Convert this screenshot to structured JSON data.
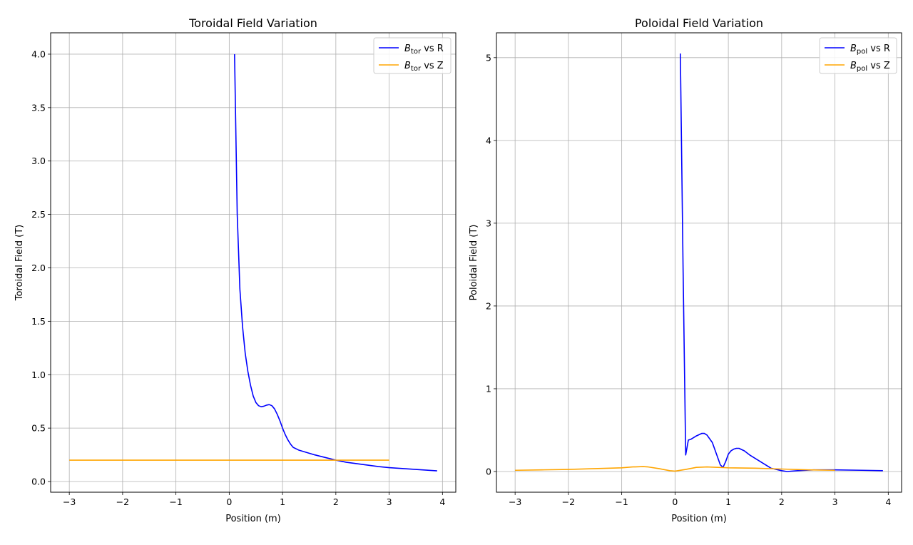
{
  "chart_data": [
    {
      "type": "line",
      "title": "Toroidal Field Variation",
      "xlabel": "Position (m)",
      "ylabel": "Toroidal Field (T)",
      "xlim": [
        -3.35,
        4.25
      ],
      "ylim": [
        -0.1,
        4.2
      ],
      "xticks": [
        -3,
        -2,
        -1,
        0,
        1,
        2,
        3,
        4
      ],
      "xtick_labels": [
        "−3",
        "−2",
        "−1",
        "0",
        "1",
        "2",
        "3",
        "4"
      ],
      "yticks": [
        0.0,
        0.5,
        1.0,
        1.5,
        2.0,
        2.5,
        3.0,
        3.5,
        4.0
      ],
      "ytick_labels": [
        "0.0",
        "0.5",
        "1.0",
        "1.5",
        "2.0",
        "2.5",
        "3.0",
        "3.5",
        "4.0"
      ],
      "grid": true,
      "legend_position": "top-right",
      "series": [
        {
          "name": "B_tor vs R",
          "legend_base": "B",
          "legend_sub": "tor",
          "legend_suffix": " vs R",
          "color": "#0000ff",
          "x": [
            0.1,
            0.15,
            0.2,
            0.25,
            0.3,
            0.35,
            0.4,
            0.45,
            0.5,
            0.55,
            0.6,
            0.65,
            0.7,
            0.75,
            0.8,
            0.85,
            0.9,
            0.95,
            1.0,
            1.05,
            1.1,
            1.15,
            1.2,
            1.3,
            1.4,
            1.5,
            1.6,
            1.8,
            2.0,
            2.2,
            2.5,
            2.8,
            3.0,
            3.3,
            3.6,
            3.9
          ],
          "y": [
            4.0,
            2.5,
            1.8,
            1.45,
            1.2,
            1.03,
            0.9,
            0.8,
            0.74,
            0.71,
            0.7,
            0.705,
            0.715,
            0.72,
            0.71,
            0.68,
            0.63,
            0.57,
            0.5,
            0.44,
            0.39,
            0.35,
            0.32,
            0.295,
            0.28,
            0.265,
            0.25,
            0.225,
            0.2,
            0.18,
            0.16,
            0.14,
            0.13,
            0.12,
            0.11,
            0.1
          ]
        },
        {
          "name": "B_tor vs Z",
          "legend_base": "B",
          "legend_sub": "tor",
          "legend_suffix": " vs Z",
          "color": "#ffa500",
          "x": [
            -3,
            3
          ],
          "y": [
            0.2,
            0.2
          ]
        }
      ]
    },
    {
      "type": "line",
      "title": "Poloidal Field Variation",
      "xlabel": "Position (m)",
      "ylabel": "Poloidal Field (T)",
      "xlim": [
        -3.35,
        4.25
      ],
      "ylim": [
        -0.25,
        5.3
      ],
      "xticks": [
        -3,
        -2,
        -1,
        0,
        1,
        2,
        3,
        4
      ],
      "xtick_labels": [
        "−3",
        "−2",
        "−1",
        "0",
        "1",
        "2",
        "3",
        "4"
      ],
      "yticks": [
        0,
        1,
        2,
        3,
        4,
        5
      ],
      "ytick_labels": [
        "0",
        "1",
        "2",
        "3",
        "4",
        "5"
      ],
      "grid": true,
      "legend_position": "top-right",
      "series": [
        {
          "name": "B_pol vs R",
          "legend_base": "B",
          "legend_sub": "pol",
          "legend_suffix": " vs R",
          "color": "#0000ff",
          "x": [
            0.1,
            0.15,
            0.2,
            0.25,
            0.3,
            0.4,
            0.5,
            0.55,
            0.6,
            0.7,
            0.8,
            0.85,
            0.9,
            0.95,
            1.0,
            1.05,
            1.1,
            1.15,
            1.2,
            1.3,
            1.4,
            1.6,
            1.8,
            2.0,
            2.1,
            2.3,
            2.6,
            3.0,
            3.5,
            3.9
          ],
          "y": [
            5.05,
            2.5,
            0.2,
            0.38,
            0.39,
            0.43,
            0.46,
            0.46,
            0.44,
            0.35,
            0.17,
            0.08,
            0.05,
            0.12,
            0.21,
            0.25,
            0.27,
            0.28,
            0.28,
            0.25,
            0.2,
            0.12,
            0.04,
            0.01,
            0.0,
            0.01,
            0.02,
            0.02,
            0.015,
            0.01
          ]
        },
        {
          "name": "B_pol vs Z",
          "legend_base": "B",
          "legend_sub": "pol",
          "legend_suffix": " vs Z",
          "color": "#ffa500",
          "x": [
            -3.0,
            -2.5,
            -2.0,
            -1.5,
            -1.0,
            -0.8,
            -0.6,
            -0.5,
            -0.3,
            -0.1,
            0.0,
            0.2,
            0.4,
            0.6,
            0.8,
            1.0,
            1.5,
            2.0,
            2.5,
            3.0
          ],
          "y": [
            0.015,
            0.02,
            0.025,
            0.035,
            0.045,
            0.055,
            0.06,
            0.055,
            0.035,
            0.01,
            0.005,
            0.025,
            0.05,
            0.055,
            0.05,
            0.045,
            0.04,
            0.03,
            0.02,
            0.015
          ]
        }
      ]
    }
  ]
}
